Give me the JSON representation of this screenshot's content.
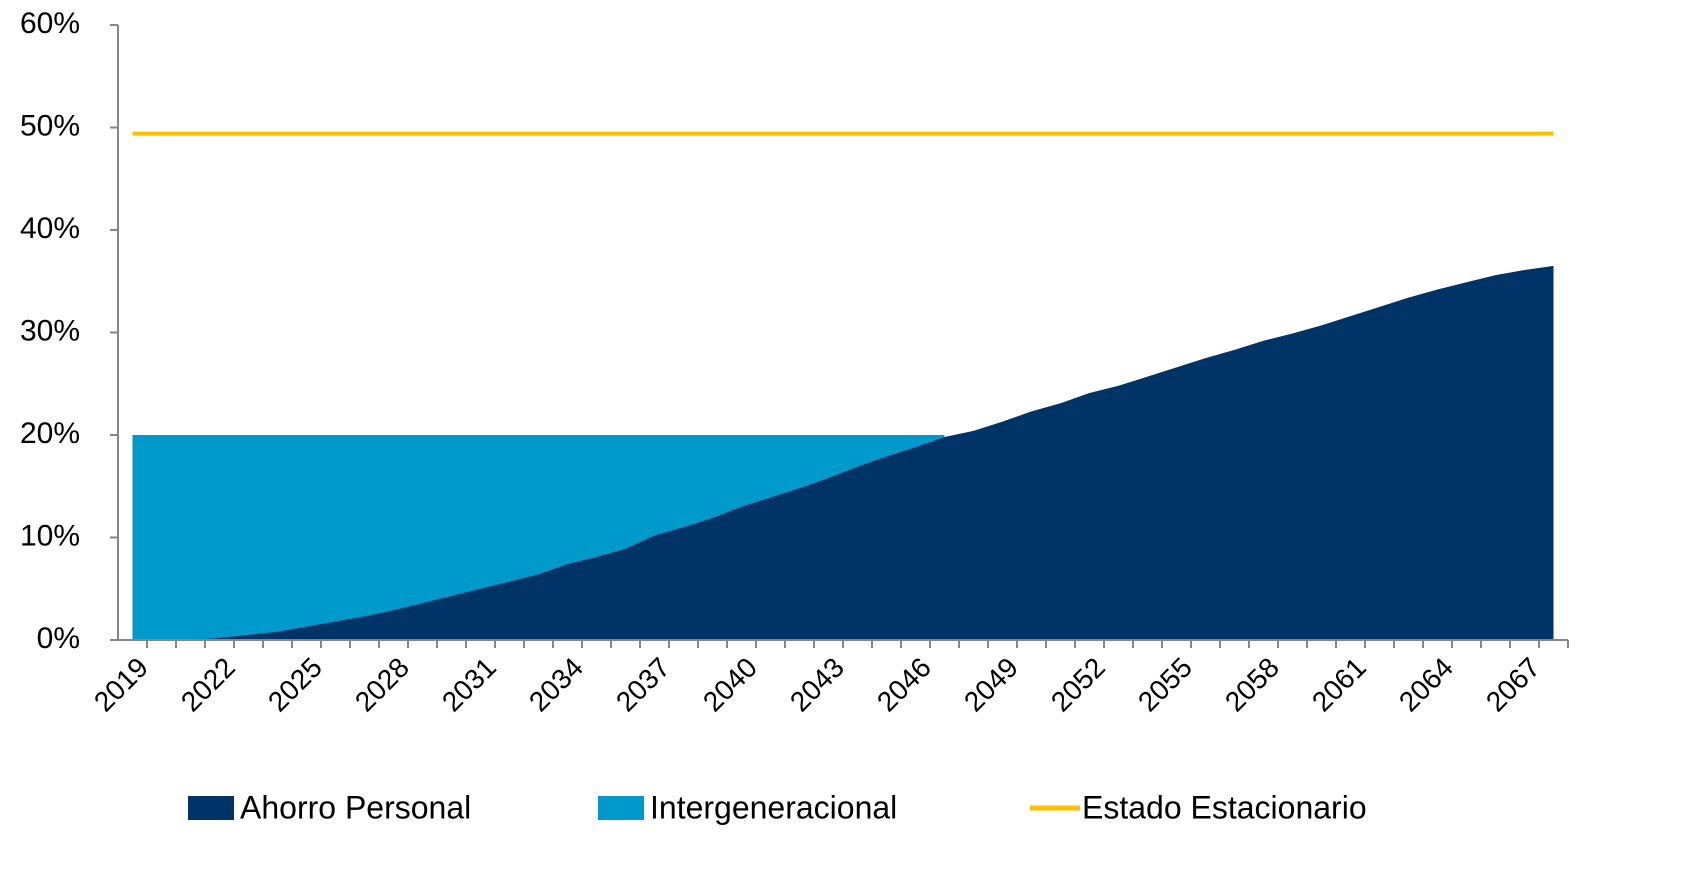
{
  "chart_data": {
    "type": "area",
    "categories": [
      "2019",
      null,
      null,
      "2022",
      null,
      null,
      "2025",
      null,
      null,
      "2028",
      null,
      null,
      "2031",
      null,
      null,
      "2034",
      null,
      null,
      "2037",
      null,
      null,
      "2040",
      null,
      null,
      "2043",
      null,
      null,
      "2046",
      null,
      null,
      "2049",
      null,
      null,
      "2052",
      null,
      null,
      "2055",
      null,
      null,
      "2058",
      null,
      null,
      "2061",
      null,
      null,
      "2064",
      null,
      null,
      "2067",
      null
    ],
    "series": [
      {
        "name": "Intergeneracional",
        "kind": "area",
        "color": "#0099cc",
        "values": [
          20,
          20,
          20,
          20,
          20,
          20,
          20,
          20,
          20,
          20,
          20,
          20,
          20,
          20,
          20,
          20,
          20,
          20,
          20,
          20,
          20,
          20,
          20,
          20,
          20,
          20,
          20,
          20,
          20,
          null,
          null,
          null,
          null,
          null,
          null,
          null,
          null,
          null,
          null,
          null,
          null,
          null,
          null,
          null,
          null,
          null,
          null,
          null,
          null,
          null
        ]
      },
      {
        "name": "Ahorro Personal",
        "kind": "area",
        "color": "#003366",
        "values": [
          0,
          0,
          0,
          0.2,
          0.5,
          0.8,
          1.3,
          1.8,
          2.3,
          2.9,
          3.6,
          4.3,
          5.0,
          5.7,
          6.4,
          7.4,
          8.1,
          8.9,
          10.2,
          11.0,
          11.9,
          13.0,
          13.9,
          14.8,
          15.8,
          16.9,
          17.9,
          18.8,
          19.8,
          20.4,
          21.3,
          22.3,
          23.1,
          24.1,
          24.8,
          25.7,
          26.6,
          27.5,
          28.3,
          29.2,
          29.9,
          30.7,
          31.6,
          32.5,
          33.4,
          34.2,
          34.9,
          35.6,
          36.1,
          36.5
        ]
      },
      {
        "name": "Estado Estacionario",
        "kind": "line",
        "color": "#ffc000",
        "values": [
          49.4,
          49.4,
          49.4,
          49.4,
          49.4,
          49.4,
          49.4,
          49.4,
          49.4,
          49.4,
          49.4,
          49.4,
          49.4,
          49.4,
          49.4,
          49.4,
          49.4,
          49.4,
          49.4,
          49.4,
          49.4,
          49.4,
          49.4,
          49.4,
          49.4,
          49.4,
          49.4,
          49.4,
          49.4,
          49.4,
          49.4,
          49.4,
          49.4,
          49.4,
          49.4,
          49.4,
          49.4,
          49.4,
          49.4,
          49.4,
          49.4,
          49.4,
          49.4,
          49.4,
          49.4,
          49.4,
          49.4,
          49.4,
          49.4,
          49.4
        ]
      }
    ],
    "legend_order": [
      1,
      0,
      2
    ],
    "ylim": [
      0,
      60
    ],
    "yticks": [
      {
        "value": 0,
        "label": "0%"
      },
      {
        "value": 10,
        "label": "10%"
      },
      {
        "value": 20,
        "label": "20%"
      },
      {
        "value": 30,
        "label": "30%"
      },
      {
        "value": 40,
        "label": "40%"
      },
      {
        "value": 50,
        "label": "50%"
      },
      {
        "value": 60,
        "label": "60%"
      }
    ],
    "grid": false
  }
}
